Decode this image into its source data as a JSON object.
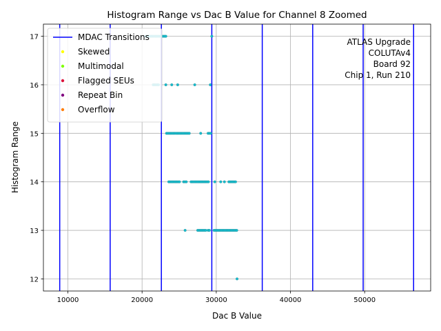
{
  "chart_data": {
    "type": "scatter",
    "title": "Histogram Range vs Dac B Value for Channel 8 Zoomed",
    "xlabel": "Dac B Value",
    "ylabel": "Histogram Range",
    "xlim": [
      6700,
      58900
    ],
    "ylim": [
      11.75,
      17.25
    ],
    "xticks": [
      10000,
      20000,
      30000,
      40000,
      50000
    ],
    "yticks": [
      12,
      13,
      14,
      15,
      16,
      17
    ],
    "grid": true,
    "legend_position": "top-left",
    "annotation": [
      "ATLAS Upgrade",
      "COLUTAv4",
      "Board 92",
      "Chip 1, Run 210"
    ],
    "legend": [
      {
        "name": "MDAC Transitions",
        "kind": "line",
        "color": "#0000ff"
      },
      {
        "name": "Skewed",
        "kind": "marker",
        "color": "#ffff00"
      },
      {
        "name": "Multimodal",
        "kind": "marker",
        "color": "#7fff00"
      },
      {
        "name": "Flagged SEUs",
        "kind": "marker",
        "color": "#dc143c"
      },
      {
        "name": "Repeat Bin",
        "kind": "marker",
        "color": "#800080"
      },
      {
        "name": "Overflow",
        "kind": "marker",
        "color": "#ff7f0e"
      }
    ],
    "mdac_transitions": [
      8900,
      15700,
      22600,
      29400,
      36200,
      43000,
      49800,
      56600
    ],
    "point_color": "#17becf",
    "series": [
      {
        "y": 17,
        "x_ranges": [
          [
            20500,
            23200
          ]
        ],
        "x_points": [
          29400
        ]
      },
      {
        "y": 16,
        "x_ranges": [
          [
            21500,
            22300
          ]
        ],
        "x_points": [
          23200,
          24000,
          24800,
          27100,
          29200
        ]
      },
      {
        "y": 15,
        "x_ranges": [
          [
            23300,
            26500
          ],
          [
            28900,
            29300
          ]
        ],
        "x_points": [
          27900
        ]
      },
      {
        "y": 14,
        "x_ranges": [
          [
            23600,
            25100
          ],
          [
            25600,
            26100
          ],
          [
            26600,
            29100
          ],
          [
            31700,
            32700
          ]
        ],
        "x_points": [
          29800,
          30600,
          31100
        ]
      },
      {
        "y": 13,
        "x_ranges": [
          [
            27500,
            28600
          ],
          [
            28900,
            29200
          ],
          [
            29700,
            32900
          ]
        ],
        "x_points": [
          25800
        ]
      },
      {
        "y": 12,
        "x_ranges": [],
        "x_points": [
          32800
        ]
      }
    ]
  }
}
